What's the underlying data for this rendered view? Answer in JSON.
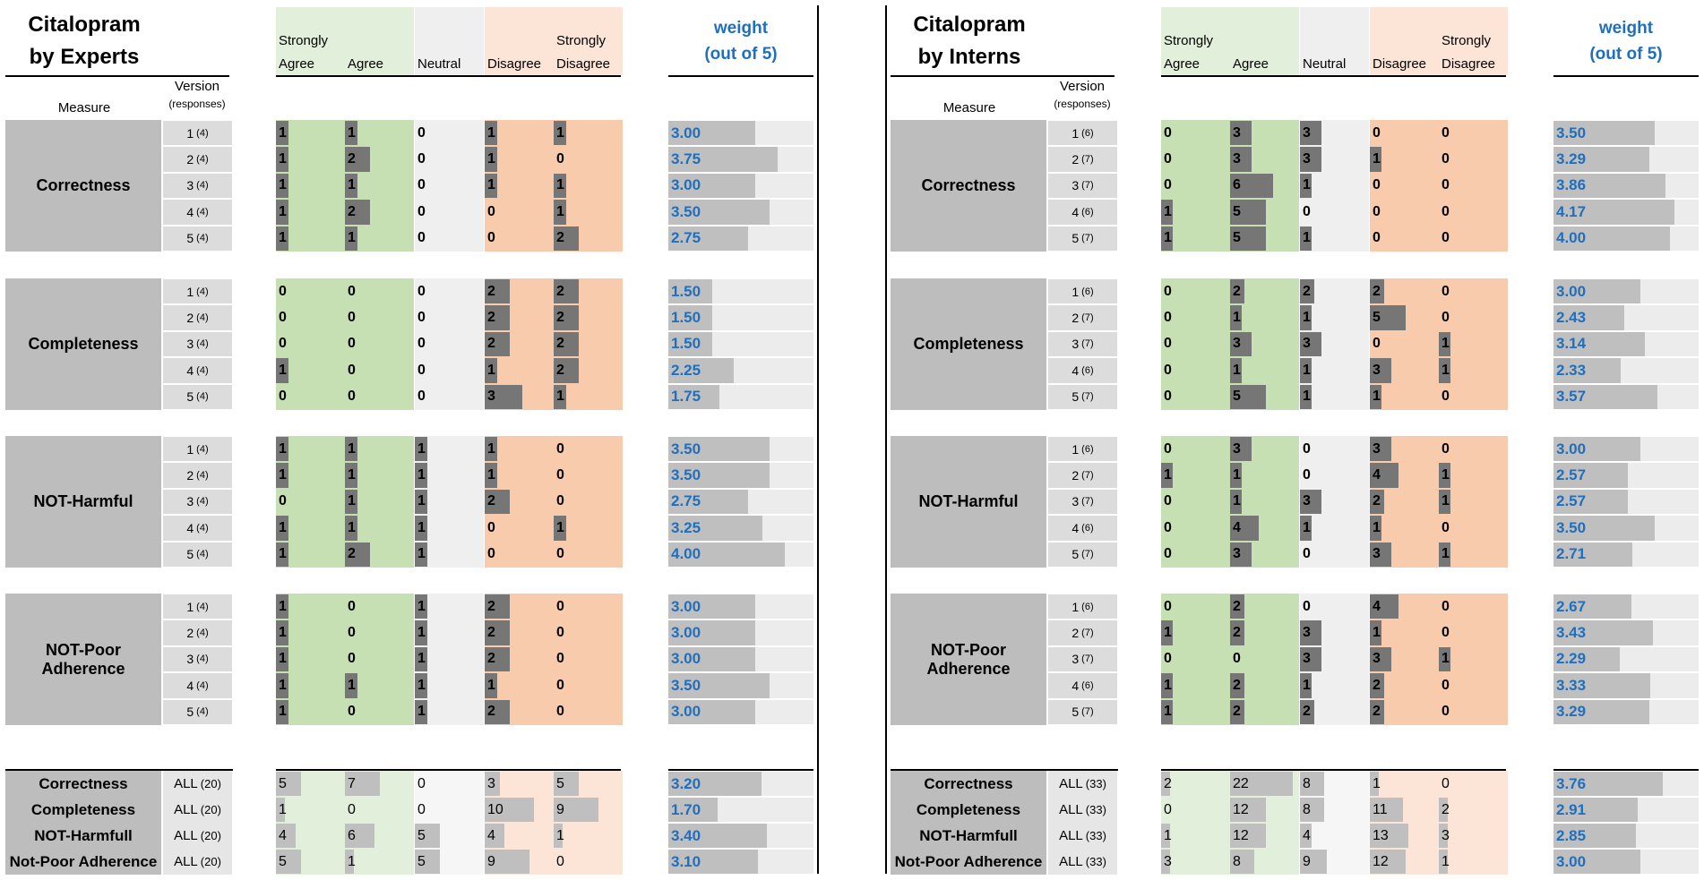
{
  "panels": [
    {
      "title_line1": "Citalopram",
      "title_line2": "by Experts",
      "measure_header": "Measure",
      "version_header": "Version",
      "responses_header": "(responses)",
      "column_headers": [
        {
          "line1": "Strongly",
          "line2": "Agree"
        },
        {
          "line1": "",
          "line2": "Agree"
        },
        {
          "line1": "",
          "line2": "Neutral"
        },
        {
          "line1": "",
          "line2": "Disagree"
        },
        {
          "line1": "Strongly",
          "line2": "Disagree"
        }
      ],
      "weight_header_line1": "weight",
      "weight_header_line2": "(out of 5)",
      "groups": [
        {
          "measure": "Correctness",
          "rows": [
            {
              "version": "1",
              "responses": "(4)",
              "counts": [
                "1",
                "1",
                "0",
                "1",
                "1"
              ],
              "weight": "3.00"
            },
            {
              "version": "2",
              "responses": "(4)",
              "counts": [
                "1",
                "2",
                "0",
                "1",
                "0"
              ],
              "weight": "3.75"
            },
            {
              "version": "3",
              "responses": "(4)",
              "counts": [
                "1",
                "1",
                "0",
                "1",
                "1"
              ],
              "weight": "3.00"
            },
            {
              "version": "4",
              "responses": "(4)",
              "counts": [
                "1",
                "2",
                "0",
                "0",
                "1"
              ],
              "weight": "3.50"
            },
            {
              "version": "5",
              "responses": "(4)",
              "counts": [
                "1",
                "1",
                "0",
                "0",
                "2"
              ],
              "weight": "2.75"
            }
          ]
        },
        {
          "measure": "Completeness",
          "rows": [
            {
              "version": "1",
              "responses": "(4)",
              "counts": [
                "0",
                "0",
                "0",
                "2",
                "2"
              ],
              "weight": "1.50"
            },
            {
              "version": "2",
              "responses": "(4)",
              "counts": [
                "0",
                "0",
                "0",
                "2",
                "2"
              ],
              "weight": "1.50"
            },
            {
              "version": "3",
              "responses": "(4)",
              "counts": [
                "0",
                "0",
                "0",
                "2",
                "2"
              ],
              "weight": "1.50"
            },
            {
              "version": "4",
              "responses": "(4)",
              "counts": [
                "1",
                "0",
                "0",
                "1",
                "2"
              ],
              "weight": "2.25"
            },
            {
              "version": "5",
              "responses": "(4)",
              "counts": [
                "0",
                "0",
                "0",
                "3",
                "1"
              ],
              "weight": "1.75"
            }
          ]
        },
        {
          "measure": "NOT-Harmful",
          "rows": [
            {
              "version": "1",
              "responses": "(4)",
              "counts": [
                "1",
                "1",
                "1",
                "1",
                "0"
              ],
              "weight": "3.50"
            },
            {
              "version": "2",
              "responses": "(4)",
              "counts": [
                "1",
                "1",
                "1",
                "1",
                "0"
              ],
              "weight": "3.50"
            },
            {
              "version": "3",
              "responses": "(4)",
              "counts": [
                "0",
                "1",
                "1",
                "2",
                "0"
              ],
              "weight": "2.75"
            },
            {
              "version": "4",
              "responses": "(4)",
              "counts": [
                "1",
                "1",
                "1",
                "0",
                "1"
              ],
              "weight": "3.25"
            },
            {
              "version": "5",
              "responses": "(4)",
              "counts": [
                "1",
                "2",
                "1",
                "0",
                "0"
              ],
              "weight": "4.00"
            }
          ]
        },
        {
          "measure": "NOT-Poor Adherence",
          "rows": [
            {
              "version": "1",
              "responses": "(4)",
              "counts": [
                "1",
                "0",
                "1",
                "2",
                "0"
              ],
              "weight": "3.00"
            },
            {
              "version": "2",
              "responses": "(4)",
              "counts": [
                "1",
                "0",
                "1",
                "2",
                "0"
              ],
              "weight": "3.00"
            },
            {
              "version": "3",
              "responses": "(4)",
              "counts": [
                "1",
                "0",
                "1",
                "2",
                "0"
              ],
              "weight": "3.00"
            },
            {
              "version": "4",
              "responses": "(4)",
              "counts": [
                "1",
                "1",
                "1",
                "1",
                "0"
              ],
              "weight": "3.50"
            },
            {
              "version": "5",
              "responses": "(4)",
              "counts": [
                "1",
                "0",
                "1",
                "2",
                "0"
              ],
              "weight": "3.00"
            }
          ]
        }
      ],
      "summary": [
        {
          "measure": "Correctness",
          "version": "ALL",
          "responses": "(20)",
          "counts": [
            "5",
            "7",
            "0",
            "3",
            "5"
          ],
          "weight": "3.20"
        },
        {
          "measure": "Completeness",
          "version": "ALL",
          "responses": "(20)",
          "counts": [
            "1",
            "0",
            "0",
            "10",
            "9"
          ],
          "weight": "1.70"
        },
        {
          "measure": "NOT-Harmfull",
          "version": "ALL",
          "responses": "(20)",
          "counts": [
            "4",
            "6",
            "5",
            "4",
            "1"
          ],
          "weight": "3.40"
        },
        {
          "measure": "Not-Poor Adherence",
          "version": "ALL",
          "responses": "(20)",
          "counts": [
            "5",
            "1",
            "5",
            "9",
            "0"
          ],
          "weight": "3.10"
        }
      ]
    },
    {
      "title_line1": "Citalopram",
      "title_line2": "by Interns",
      "measure_header": "Measure",
      "version_header": "Version",
      "responses_header": "(responses)",
      "column_headers": [
        {
          "line1": "Strongly",
          "line2": "Agree"
        },
        {
          "line1": "",
          "line2": "Agree"
        },
        {
          "line1": "",
          "line2": "Neutral"
        },
        {
          "line1": "",
          "line2": "Disagree"
        },
        {
          "line1": "Strongly",
          "line2": "Disagree"
        }
      ],
      "weight_header_line1": "weight",
      "weight_header_line2": "(out of 5)",
      "groups": [
        {
          "measure": "Correctness",
          "rows": [
            {
              "version": "1",
              "responses": "(6)",
              "counts": [
                "0",
                "3",
                "3",
                "0",
                "0"
              ],
              "weight": "3.50"
            },
            {
              "version": "2",
              "responses": "(7)",
              "counts": [
                "0",
                "3",
                "3",
                "1",
                "0"
              ],
              "weight": "3.29"
            },
            {
              "version": "3",
              "responses": "(7)",
              "counts": [
                "0",
                "6",
                "1",
                "0",
                "0"
              ],
              "weight": "3.86"
            },
            {
              "version": "4",
              "responses": "(6)",
              "counts": [
                "1",
                "5",
                "0",
                "0",
                "0"
              ],
              "weight": "4.17"
            },
            {
              "version": "5",
              "responses": "(7)",
              "counts": [
                "1",
                "5",
                "1",
                "0",
                "0"
              ],
              "weight": "4.00"
            }
          ]
        },
        {
          "measure": "Completeness",
          "rows": [
            {
              "version": "1",
              "responses": "(6)",
              "counts": [
                "0",
                "2",
                "2",
                "2",
                "0"
              ],
              "weight": "3.00"
            },
            {
              "version": "2",
              "responses": "(7)",
              "counts": [
                "0",
                "1",
                "1",
                "5",
                "0"
              ],
              "weight": "2.43"
            },
            {
              "version": "3",
              "responses": "(7)",
              "counts": [
                "0",
                "3",
                "3",
                "0",
                "1"
              ],
              "weight": "3.14"
            },
            {
              "version": "4",
              "responses": "(6)",
              "counts": [
                "0",
                "1",
                "1",
                "3",
                "1"
              ],
              "weight": "2.33"
            },
            {
              "version": "5",
              "responses": "(7)",
              "counts": [
                "0",
                "5",
                "1",
                "1",
                "0"
              ],
              "weight": "3.57"
            }
          ]
        },
        {
          "measure": "NOT-Harmful",
          "rows": [
            {
              "version": "1",
              "responses": "(6)",
              "counts": [
                "0",
                "3",
                "0",
                "3",
                "0"
              ],
              "weight": "3.00"
            },
            {
              "version": "2",
              "responses": "(7)",
              "counts": [
                "1",
                "1",
                "0",
                "4",
                "1"
              ],
              "weight": "2.57"
            },
            {
              "version": "3",
              "responses": "(7)",
              "counts": [
                "0",
                "1",
                "3",
                "2",
                "1"
              ],
              "weight": "2.57"
            },
            {
              "version": "4",
              "responses": "(6)",
              "counts": [
                "0",
                "4",
                "1",
                "1",
                "0"
              ],
              "weight": "3.50"
            },
            {
              "version": "5",
              "responses": "(7)",
              "counts": [
                "0",
                "3",
                "0",
                "3",
                "1"
              ],
              "weight": "2.71"
            }
          ]
        },
        {
          "measure": "NOT-Poor Adherence",
          "rows": [
            {
              "version": "1",
              "responses": "(6)",
              "counts": [
                "0",
                "2",
                "0",
                "4",
                "0"
              ],
              "weight": "2.67"
            },
            {
              "version": "2",
              "responses": "(7)",
              "counts": [
                "1",
                "2",
                "3",
                "1",
                "0"
              ],
              "weight": "3.43"
            },
            {
              "version": "3",
              "responses": "(7)",
              "counts": [
                "0",
                "0",
                "3",
                "3",
                "1"
              ],
              "weight": "2.29"
            },
            {
              "version": "4",
              "responses": "(6)",
              "counts": [
                "1",
                "2",
                "1",
                "2",
                "0"
              ],
              "weight": "3.33"
            },
            {
              "version": "5",
              "responses": "(7)",
              "counts": [
                "1",
                "2",
                "2",
                "2",
                "0"
              ],
              "weight": "3.29"
            }
          ]
        }
      ],
      "summary": [
        {
          "measure": "Correctness",
          "version": "ALL",
          "responses": "(33)",
          "counts": [
            "2",
            "22",
            "8",
            "1",
            "0"
          ],
          "weight": "3.76"
        },
        {
          "measure": "Completeness",
          "version": "ALL",
          "responses": "(33)",
          "counts": [
            "0",
            "12",
            "8",
            "11",
            "2"
          ],
          "weight": "2.91"
        },
        {
          "measure": "NOT-Harmfull",
          "version": "ALL",
          "responses": "(33)",
          "counts": [
            "1",
            "12",
            "4",
            "13",
            "3"
          ],
          "weight": "2.85"
        },
        {
          "measure": "Not-Poor Adherence",
          "version": "ALL",
          "responses": "(33)",
          "counts": [
            "3",
            "8",
            "9",
            "12",
            "1"
          ],
          "weight": "3.00"
        }
      ]
    }
  ],
  "colors": {
    "agree_bg": "#c6e0b4",
    "neutral_bg": "#efefef",
    "disagree_bg": "#f8cbad",
    "summary_agree_bg": "#e2efda",
    "summary_neutral_bg": "#f6f6f6",
    "summary_disagree_bg": "#fce4d6",
    "count_bar": "#767676",
    "summary_bar": "#bfbfbf",
    "weight_bar": "#bfbfbf",
    "weight_bg": "#ececec",
    "weight_text": "#1f6fbf"
  }
}
